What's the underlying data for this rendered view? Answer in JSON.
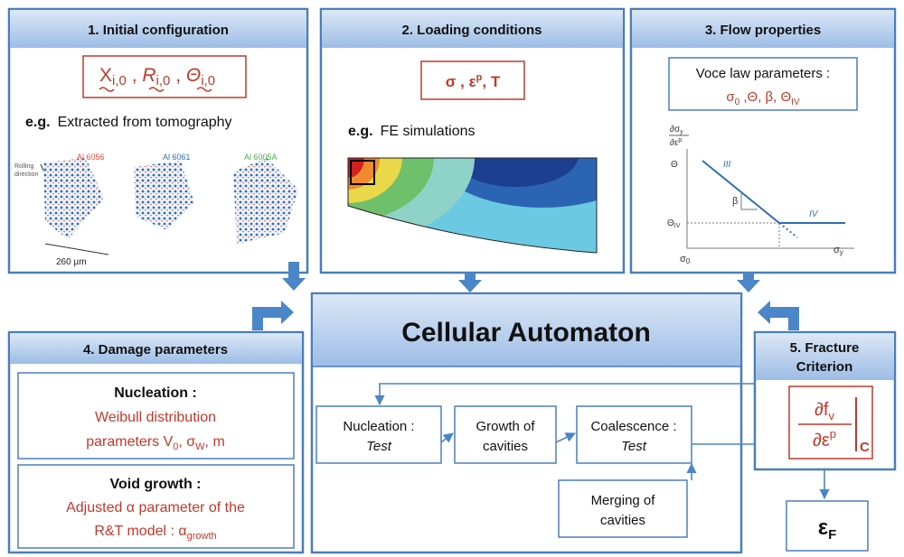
{
  "initial": {
    "title": "1. Initial configuration",
    "formula": [
      "X",
      "i,0",
      " , ",
      "R",
      "i,0",
      " , ",
      "Θ",
      "i,0"
    ],
    "example_prefix": "e.g.",
    "example": "Extracted from tomography",
    "samples": [
      "Al 6056",
      "Al 6061",
      "Al 6005A"
    ],
    "direction_label": [
      "Rolling",
      "direction"
    ],
    "scale_label": "260 µm"
  },
  "loading": {
    "title": "2. Loading conditions",
    "formula": [
      "σ , ε",
      "p",
      ", T"
    ],
    "example_prefix": "e.g.",
    "example": "FE simulations"
  },
  "flow": {
    "title": "3. Flow properties",
    "box_title": "Voce law parameters :",
    "params": [
      "σ",
      "0",
      " ,Θ, β, Θ",
      "IV"
    ],
    "graph": {
      "y_label_num": [
        "∂σ",
        "y"
      ],
      "y_label_den": [
        "∂ε",
        "p"
      ],
      "theta": "Θ",
      "stage3": "III",
      "beta": "β",
      "theta_iv": [
        "Θ",
        "IV"
      ],
      "stage4": "IV",
      "sigma0": [
        "σ",
        "0"
      ],
      "sigmay": [
        "σ",
        "y"
      ]
    }
  },
  "automaton": {
    "title": "Cellular Automaton",
    "nucleation": [
      "Nucleation :",
      "Test"
    ],
    "growth": [
      "Growth of",
      "cavities"
    ],
    "coalescence": [
      "Coalescence :",
      "Test"
    ],
    "merging": [
      "Merging of",
      "cavities"
    ]
  },
  "damage": {
    "title": "4. Damage parameters",
    "nucleation": {
      "title": "Nucleation :",
      "line1": "Weibull distribution",
      "line2": [
        "parameters V",
        "0",
        ", σ",
        "W",
        ", m"
      ]
    },
    "void_growth": {
      "title": "Void growth :",
      "line1": "Adjusted α parameter of the",
      "line2": [
        "R&T model : α",
        "growth"
      ]
    }
  },
  "fracture": {
    "title": [
      "5. Fracture",
      "Criterion"
    ],
    "num": [
      "∂f",
      "v"
    ],
    "den": [
      "∂ε",
      "p"
    ],
    "sub": "C",
    "strain": [
      "ε",
      "F"
    ]
  }
}
